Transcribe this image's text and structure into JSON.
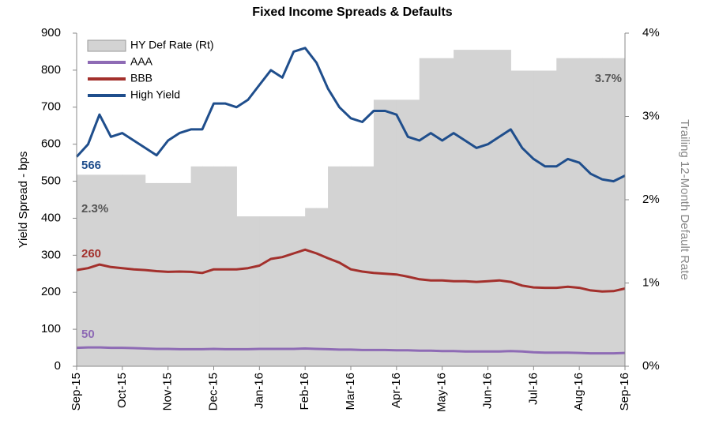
{
  "chart_data": {
    "type": "line",
    "title": "Fixed Income Spreads & Defaults",
    "ylabel": "Yield Spread - bps",
    "y2label": "Trailing 12-Month Default Rate",
    "legend": "upper left",
    "x": [
      0,
      0.25,
      0.5,
      0.75,
      1,
      1.25,
      1.5,
      1.75,
      2,
      2.25,
      2.5,
      2.75,
      3,
      3.25,
      3.5,
      3.75,
      4,
      4.25,
      4.5,
      4.75,
      5,
      5.25,
      5.5,
      5.75,
      6,
      6.25,
      6.5,
      6.75,
      7,
      7.25,
      7.5,
      7.75,
      8,
      8.25,
      8.5,
      8.75,
      9,
      9.25,
      9.5,
      9.75,
      10,
      10.25,
      10.5,
      10.75,
      11,
      11.25,
      11.5,
      11.75,
      12
    ],
    "xlim": [
      0,
      12
    ],
    "xticks": [
      {
        "value": 0,
        "label": "Sep-15"
      },
      {
        "value": 1,
        "label": "Oct-15"
      },
      {
        "value": 2,
        "label": "Nov-15"
      },
      {
        "value": 3,
        "label": "Dec-15"
      },
      {
        "value": 4,
        "label": "Jan-16"
      },
      {
        "value": 5,
        "label": "Feb-16"
      },
      {
        "value": 6,
        "label": "Mar-16"
      },
      {
        "value": 7,
        "label": "Apr-16"
      },
      {
        "value": 8,
        "label": "May-16"
      },
      {
        "value": 9,
        "label": "Jun-16"
      },
      {
        "value": 10,
        "label": "Jul-16"
      },
      {
        "value": 11,
        "label": "Aug-16"
      },
      {
        "value": 12,
        "label": "Sep-16"
      }
    ],
    "ylim": [
      0,
      900
    ],
    "yticks": [
      0,
      100,
      200,
      300,
      400,
      500,
      600,
      700,
      800,
      900
    ],
    "y2lim": [
      0,
      4
    ],
    "y2ticks": [
      {
        "value": 0,
        "label": "0%"
      },
      {
        "value": 1,
        "label": "1%"
      },
      {
        "value": 2,
        "label": "2%"
      },
      {
        "value": 3,
        "label": "3%"
      },
      {
        "value": 4,
        "label": "4%"
      }
    ],
    "series": [
      {
        "name": "HY Def Rate (Rt)",
        "type": "step-area",
        "axis": "y2",
        "color": "#d3d3d3",
        "values": [
          2.3,
          2.3,
          2.3,
          2.3,
          2.3,
          2.3,
          2.2,
          2.2,
          2.2,
          2.2,
          2.4,
          2.4,
          2.4,
          2.4,
          1.8,
          1.8,
          1.8,
          1.8,
          1.8,
          1.8,
          1.9,
          1.9,
          2.4,
          2.4,
          2.4,
          2.4,
          3.2,
          3.2,
          3.2,
          3.2,
          3.7,
          3.7,
          3.7,
          3.8,
          3.8,
          3.8,
          3.8,
          3.8,
          3.55,
          3.55,
          3.55,
          3.55,
          3.7,
          3.7,
          3.7,
          3.7,
          3.7,
          3.7,
          3.7
        ]
      },
      {
        "name": "AAA",
        "color": "#8e6bb5",
        "values": [
          50,
          51,
          51,
          50,
          50,
          49,
          48,
          47,
          47,
          46,
          46,
          46,
          47,
          46,
          46,
          46,
          47,
          47,
          47,
          47,
          48,
          47,
          46,
          45,
          45,
          44,
          44,
          44,
          43,
          43,
          42,
          42,
          41,
          41,
          40,
          40,
          40,
          40,
          41,
          40,
          38,
          37,
          37,
          37,
          36,
          35,
          35,
          35,
          36
        ]
      },
      {
        "name": "BBB",
        "color": "#a3302c",
        "values": [
          260,
          265,
          275,
          268,
          265,
          262,
          260,
          257,
          255,
          256,
          255,
          252,
          262,
          262,
          262,
          265,
          272,
          290,
          295,
          305,
          315,
          305,
          292,
          280,
          262,
          256,
          252,
          250,
          248,
          242,
          235,
          232,
          232,
          230,
          230,
          228,
          230,
          232,
          228,
          218,
          213,
          212,
          212,
          215,
          212,
          205,
          202,
          203,
          210
        ]
      },
      {
        "name": "High Yield",
        "color": "#1f4e8c",
        "values": [
          566,
          600,
          680,
          620,
          630,
          610,
          590,
          570,
          610,
          630,
          640,
          640,
          710,
          710,
          700,
          720,
          760,
          800,
          780,
          850,
          860,
          820,
          750,
          700,
          670,
          660,
          690,
          690,
          680,
          620,
          610,
          630,
          610,
          630,
          610,
          590,
          600,
          620,
          640,
          590,
          560,
          540,
          540,
          560,
          550,
          520,
          505,
          500,
          515
        ]
      }
    ],
    "annotations": [
      {
        "text": "566",
        "color": "#1f4e8c"
      },
      {
        "text": "2.3%",
        "color": "#555555"
      },
      {
        "text": "260",
        "color": "#a3302c"
      },
      {
        "text": "50",
        "color": "#8e6bb5"
      },
      {
        "text": "3.7%",
        "color": "#555555"
      }
    ]
  }
}
